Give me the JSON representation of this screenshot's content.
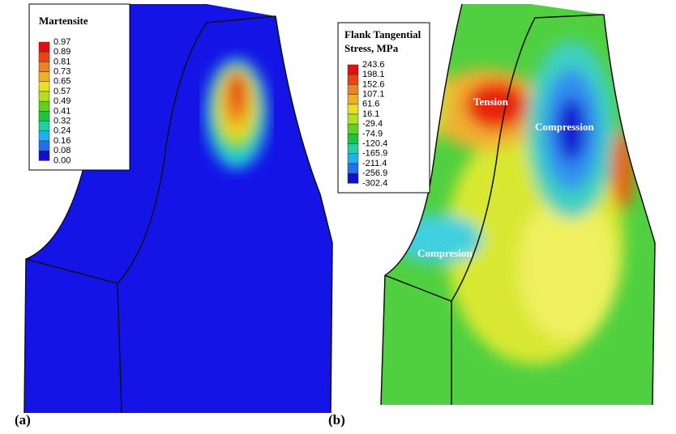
{
  "panels": [
    {
      "label": "(a)",
      "legend": {
        "title": "Martensite",
        "levels": [
          "0.97",
          "0.89",
          "0.81",
          "0.73",
          "0.65",
          "0.57",
          "0.49",
          "0.41",
          "0.32",
          "0.24",
          "0.16",
          "0.08",
          "0.00"
        ]
      }
    },
    {
      "label": "(b)",
      "legend": {
        "title_lines": [
          "Flank Tangential",
          "Stress, MPa"
        ],
        "levels": [
          "243.6",
          "198.1",
          "152.6",
          "107.1",
          "61.6",
          "16.1",
          "-29.4",
          "-74.9",
          "-120.4",
          "-165.9",
          "-211.4",
          "-256.9",
          "-302.4"
        ]
      },
      "annotations": [
        "Tension",
        "Compression",
        "Compresion"
      ]
    }
  ]
}
